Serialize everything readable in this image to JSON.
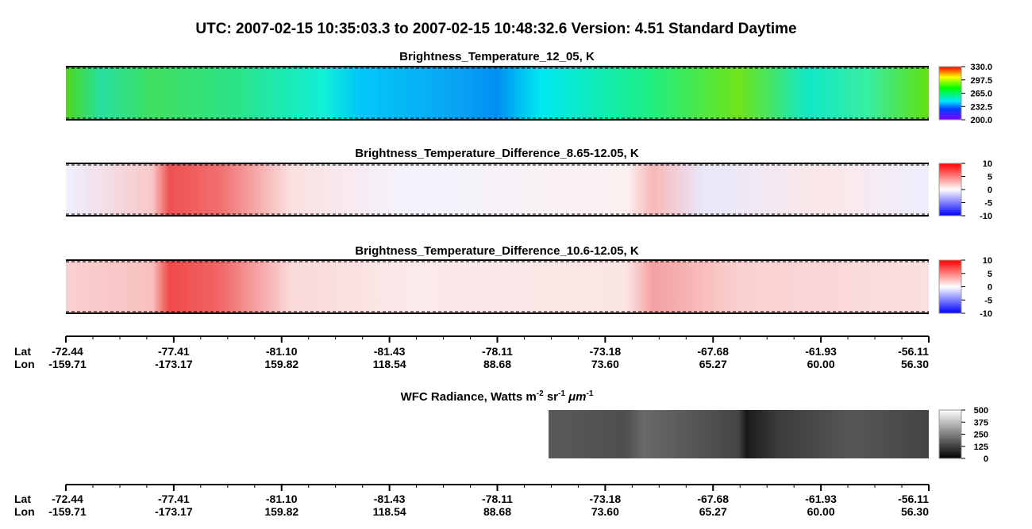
{
  "header": {
    "title": "UTC:  2007-02-15   10:35:03.3  to  2007-02-15   10:48:32.6    Version: 4.51  Standard Daytime"
  },
  "panels": [
    {
      "title": "Brightness_Temperature_12_05, K",
      "colorbar": [
        "330.0",
        "297.5",
        "265.0",
        "232.5",
        "200.0"
      ]
    },
    {
      "title": "Brightness_Temperature_Difference_8.65-12.05, K",
      "colorbar": [
        "10",
        "5",
        "0",
        "-5",
        "-10"
      ]
    },
    {
      "title": "Brightness_Temperature_Difference_10.6-12.05, K",
      "colorbar": [
        "10",
        "5",
        "0",
        "-5",
        "-10"
      ]
    },
    {
      "title_parts": [
        "WFC Radiance, Watts m",
        "-2",
        " sr",
        "-1",
        " μm",
        "-1"
      ],
      "colorbar": [
        "500",
        "375",
        "250",
        "125",
        "0"
      ]
    }
  ],
  "axis": {
    "lat_label": "Lat",
    "lon_label": "Lon",
    "lat": [
      "-72.44",
      "-77.41",
      "-81.10",
      "-81.43",
      "-78.11",
      "-73.18",
      "-67.68",
      "-61.93",
      "-56.11"
    ],
    "lon": [
      "-159.71",
      "-173.17",
      "159.82",
      "118.54",
      "88.68",
      "73.60",
      "65.27",
      "60.00",
      "56.30"
    ]
  }
}
